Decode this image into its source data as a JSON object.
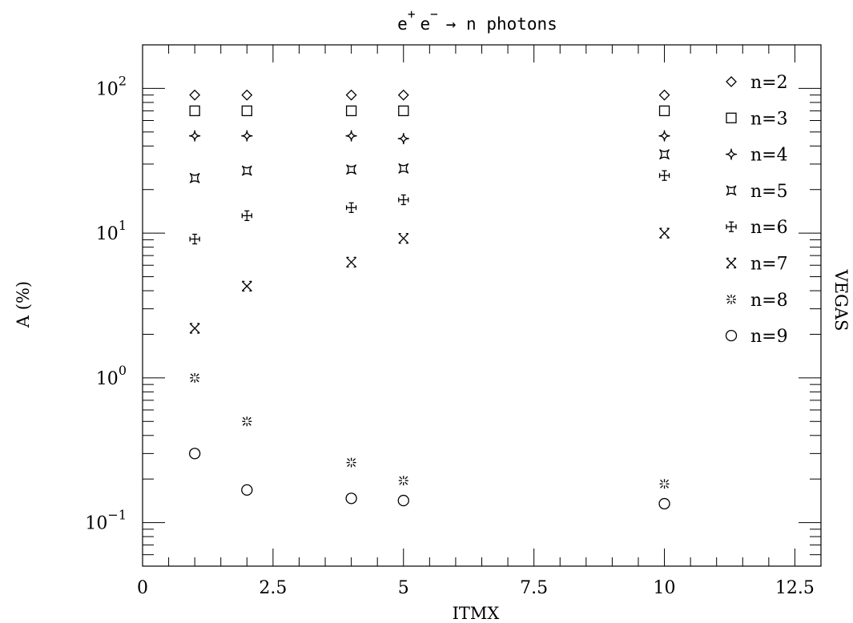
{
  "chart_data": {
    "type": "scatter",
    "title": {
      "base1": "e",
      "sup1": "+",
      "base2": "e",
      "sup2": "−",
      "rest": "→ n photons"
    },
    "xlabel": "ITMX",
    "ylabel": "A (%)",
    "right_label": "VEGAS",
    "xlim": [
      0,
      13
    ],
    "ylim": [
      0.05,
      200
    ],
    "yscale": "log",
    "x_ticks": [
      {
        "value": 0,
        "label": "0"
      },
      {
        "value": 2.5,
        "label": "2.5"
      },
      {
        "value": 5,
        "label": "5"
      },
      {
        "value": 7.5,
        "label": "7.5"
      },
      {
        "value": 10,
        "label": "10"
      },
      {
        "value": 12.5,
        "label": "12.5"
      }
    ],
    "y_ticks": [
      {
        "value": 0.1,
        "base": "10",
        "exp": "−1"
      },
      {
        "value": 1,
        "base": "10",
        "exp": "0"
      },
      {
        "value": 10,
        "base": "10",
        "exp": "1"
      },
      {
        "value": 100,
        "base": "10",
        "exp": "2"
      }
    ],
    "x": [
      1,
      2,
      4,
      5,
      10
    ],
    "series": [
      {
        "name": "n=2",
        "marker": "diamond",
        "values": [
          90,
          90,
          90,
          90,
          90
        ]
      },
      {
        "name": "n=3",
        "marker": "square",
        "values": [
          70,
          70,
          70,
          70,
          70
        ]
      },
      {
        "name": "n=4",
        "marker": "star4",
        "values": [
          47,
          47,
          47,
          45,
          47
        ]
      },
      {
        "name": "n=5",
        "marker": "concave-square",
        "values": [
          24,
          27,
          27.5,
          28,
          35
        ]
      },
      {
        "name": "n=6",
        "marker": "box-plus",
        "values": [
          9.1,
          13.2,
          15,
          17,
          25
        ]
      },
      {
        "name": "n=7",
        "marker": "cross",
        "values": [
          2.2,
          4.3,
          6.3,
          9.2,
          10
        ]
      },
      {
        "name": "n=8",
        "marker": "asterisk",
        "values": [
          1.0,
          0.5,
          0.26,
          0.195,
          0.185
        ]
      },
      {
        "name": "n=9",
        "marker": "circle",
        "values": [
          0.3,
          0.168,
          0.147,
          0.142,
          0.135
        ]
      }
    ],
    "legend": "top-right",
    "grid": false
  }
}
